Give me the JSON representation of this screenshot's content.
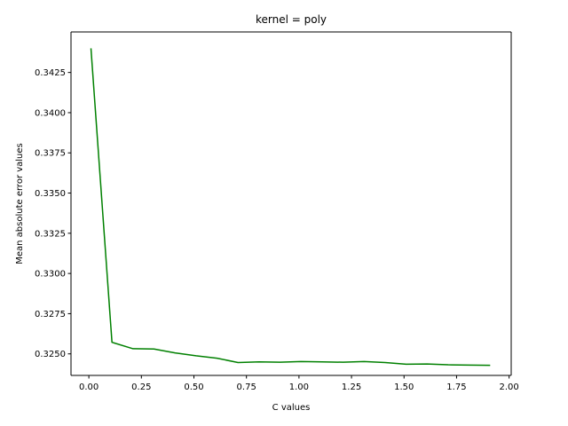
{
  "chart_data": {
    "type": "line",
    "title": "kernel = poly",
    "xlabel": "C values",
    "ylabel": "Mean absolute error values",
    "xlim": [
      -0.085,
      2.01
    ],
    "ylim": [
      0.32366,
      0.34502
    ],
    "xticks": [
      0.0,
      0.25,
      0.5,
      0.75,
      1.0,
      1.25,
      1.5,
      1.75,
      2.0
    ],
    "xtick_labels": [
      "0.00",
      "0.25",
      "0.50",
      "0.75",
      "1.00",
      "1.25",
      "1.50",
      "1.75",
      "2.00"
    ],
    "yticks": [
      0.325,
      0.3275,
      0.33,
      0.3325,
      0.335,
      0.3375,
      0.34,
      0.3425
    ],
    "ytick_labels": [
      "0.3250",
      "0.3275",
      "0.3300",
      "0.3325",
      "0.3350",
      "0.3375",
      "0.3400",
      "0.3425"
    ],
    "grid": false,
    "series": [
      {
        "color": "#008000",
        "x": [
          0.01,
          0.11,
          0.21,
          0.31,
          0.41,
          0.51,
          0.61,
          0.71,
          0.81,
          0.91,
          1.01,
          1.11,
          1.21,
          1.31,
          1.41,
          1.51,
          1.61,
          1.71,
          1.81,
          1.91
        ],
        "y": [
          0.344,
          0.32572,
          0.32532,
          0.3253,
          0.32506,
          0.32488,
          0.32473,
          0.32446,
          0.3245,
          0.32448,
          0.32452,
          0.3245,
          0.32448,
          0.32452,
          0.32446,
          0.32436,
          0.32437,
          0.32432,
          0.3243,
          0.32429
        ]
      }
    ]
  }
}
